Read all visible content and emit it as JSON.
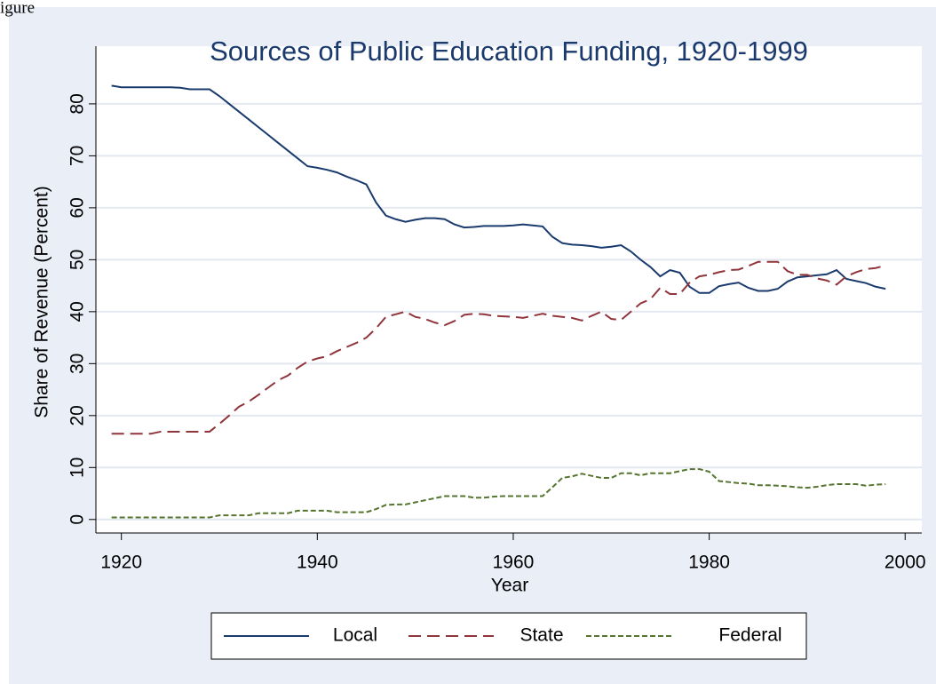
{
  "caption": "igure",
  "chart_data": {
    "type": "line",
    "title": "Sources of Public Education Funding, 1920-1999",
    "xlabel": "Year",
    "ylabel": "Share of Revenue (Percent)",
    "x": [
      1919,
      1920,
      1921,
      1922,
      1923,
      1924,
      1925,
      1926,
      1927,
      1928,
      1929,
      1930,
      1931,
      1932,
      1933,
      1934,
      1935,
      1936,
      1937,
      1938,
      1939,
      1940,
      1941,
      1942,
      1943,
      1944,
      1945,
      1946,
      1947,
      1948,
      1949,
      1950,
      1951,
      1952,
      1953,
      1954,
      1955,
      1956,
      1957,
      1958,
      1959,
      1960,
      1961,
      1962,
      1963,
      1964,
      1965,
      1966,
      1967,
      1968,
      1969,
      1970,
      1971,
      1972,
      1973,
      1974,
      1975,
      1976,
      1977,
      1978,
      1979,
      1980,
      1981,
      1982,
      1983,
      1984,
      1985,
      1986,
      1987,
      1988,
      1989,
      1990,
      1991,
      1992,
      1993,
      1994,
      1995,
      1996,
      1997,
      1998
    ],
    "series": [
      {
        "name": "Local",
        "color": "#1a3a6e",
        "linestyle": "solid",
        "values": [
          83.5,
          83.2,
          83.2,
          83.2,
          83.2,
          83.2,
          83.2,
          83.1,
          82.8,
          82.8,
          82.8,
          81.5,
          80,
          78.5,
          77,
          75.5,
          74,
          72.5,
          71,
          69.5,
          68,
          67.7,
          67.3,
          66.8,
          66,
          65.3,
          64.5,
          61,
          58.5,
          57.8,
          57.3,
          57.7,
          58,
          58,
          57.8,
          56.8,
          56.2,
          56.3,
          56.5,
          56.5,
          56.5,
          56.6,
          56.8,
          56.6,
          56.4,
          54.4,
          53.2,
          52.9,
          52.8,
          52.6,
          52.3,
          52.5,
          52.8,
          51.6,
          50,
          48.6,
          46.8,
          48,
          47.5,
          44.8,
          43.6,
          43.6,
          44.9,
          45.3,
          45.6,
          44.6,
          44,
          44,
          44.4,
          45.8,
          46.6,
          46.8,
          47,
          47.2,
          48,
          46.3,
          45.9,
          45.5,
          44.8,
          44.4
        ]
      },
      {
        "name": "State",
        "color": "#90353b",
        "linestyle": "dashed",
        "values": [
          16.5,
          16.5,
          16.5,
          16.5,
          16.5,
          16.9,
          16.9,
          16.9,
          16.9,
          16.9,
          16.9,
          18.4,
          20,
          21.7,
          22.7,
          24,
          25.4,
          26.8,
          27.7,
          29.2,
          30.4,
          31,
          31.4,
          32.4,
          33.2,
          34,
          35,
          36.8,
          39,
          39.5,
          40,
          39,
          38.6,
          37.9,
          37.4,
          38.2,
          39.4,
          39.6,
          39.5,
          39.2,
          39.1,
          39,
          38.8,
          39.2,
          39.6,
          39.2,
          39,
          38.8,
          38.3,
          39.2,
          40,
          38.6,
          38.4,
          40,
          41.6,
          42.4,
          44.6,
          43.4,
          43.4,
          45.6,
          46.8,
          47.1,
          47.6,
          48,
          48.1,
          48.8,
          49.6,
          49.6,
          49.6,
          47.8,
          47.1,
          47.1,
          46.4,
          46,
          45.2,
          46.8,
          47.6,
          48.2,
          48.4,
          48.9
        ]
      },
      {
        "name": "Federal",
        "color": "#55752f",
        "linestyle": "dotted",
        "values": [
          0.4,
          0.4,
          0.4,
          0.4,
          0.4,
          0.4,
          0.4,
          0.4,
          0.4,
          0.4,
          0.4,
          0.8,
          0.8,
          0.8,
          0.8,
          1.2,
          1.2,
          1.2,
          1.2,
          1.7,
          1.7,
          1.7,
          1.7,
          1.4,
          1.4,
          1.4,
          1.4,
          2,
          2.8,
          2.9,
          2.9,
          3.3,
          3.7,
          4.1,
          4.5,
          4.5,
          4.5,
          4.2,
          4.2,
          4.4,
          4.5,
          4.5,
          4.5,
          4.5,
          4.5,
          6.2,
          8,
          8.3,
          8.8,
          8.4,
          8,
          8,
          8.9,
          8.9,
          8.5,
          8.9,
          8.9,
          8.9,
          9.3,
          9.7,
          9.7,
          9.2,
          7.4,
          7.2,
          7,
          6.9,
          6.6,
          6.6,
          6.5,
          6.4,
          6.2,
          6.1,
          6.3,
          6.6,
          6.8,
          6.8,
          6.8,
          6.5,
          6.7,
          6.8
        ]
      }
    ],
    "xlim": [
      1917.4,
      2001.7
    ],
    "ylim": [
      -2.6,
      91.1
    ],
    "xticks": [
      1920,
      1940,
      1960,
      1980,
      2000
    ],
    "yticks": [
      0,
      10,
      20,
      30,
      40,
      50,
      60,
      70,
      80
    ],
    "grid": true,
    "legend": "bottom"
  }
}
